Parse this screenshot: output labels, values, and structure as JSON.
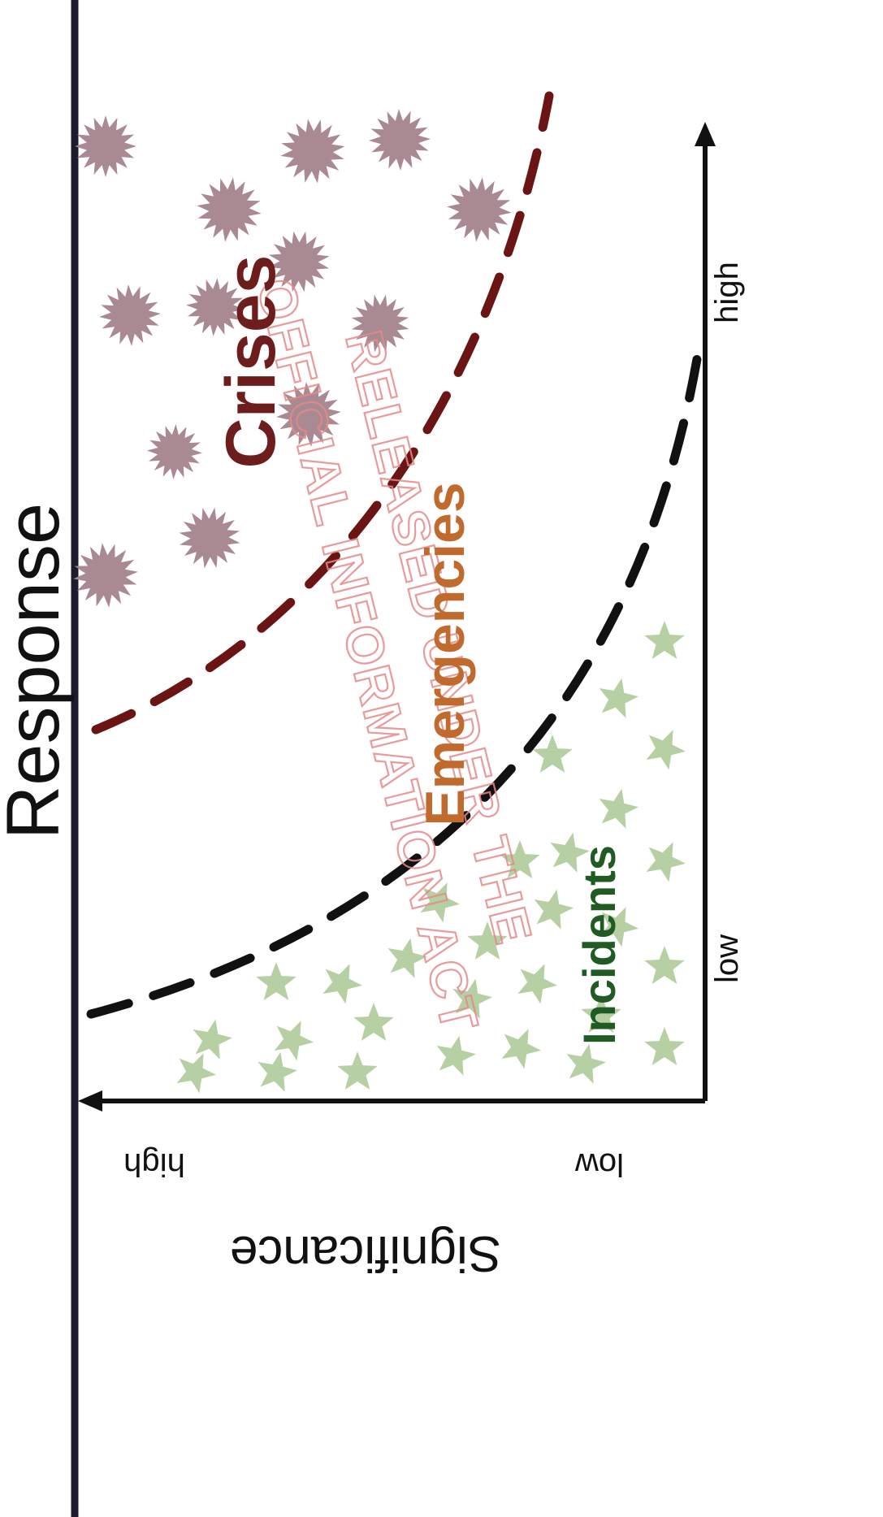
{
  "diagram": {
    "title": "Response",
    "axes": {
      "vertical": {
        "low_label": "low",
        "high_label": "high"
      },
      "horizontal": {
        "name": "Significance",
        "low_label": "low",
        "high_label": "high"
      }
    },
    "regions": [
      {
        "id": "crises",
        "label": "Crises",
        "color": "#6e1d1d",
        "marker": "burst",
        "marker_color": "#a98992"
      },
      {
        "id": "emergencies",
        "label": "Emergencies",
        "color": "#c06a2e",
        "marker": "none"
      },
      {
        "id": "incidents",
        "label": "Incidents",
        "color": "#1f5b22",
        "marker": "star",
        "marker_color": "#b6cfa3"
      }
    ],
    "boundaries": [
      {
        "id": "crises-emergencies",
        "color": "#6b1414",
        "style": "dashed"
      },
      {
        "id": "emergencies-incidents",
        "color": "#111111",
        "style": "dashed"
      }
    ],
    "watermark": {
      "lines": [
        "RELEASED UNDER THE",
        "OFFICIAL INFORMATION ACT"
      ],
      "color": "#e58a8a"
    },
    "colors": {
      "frame": "#1c1c2e",
      "axis": "#111111",
      "text": "#111111"
    }
  }
}
